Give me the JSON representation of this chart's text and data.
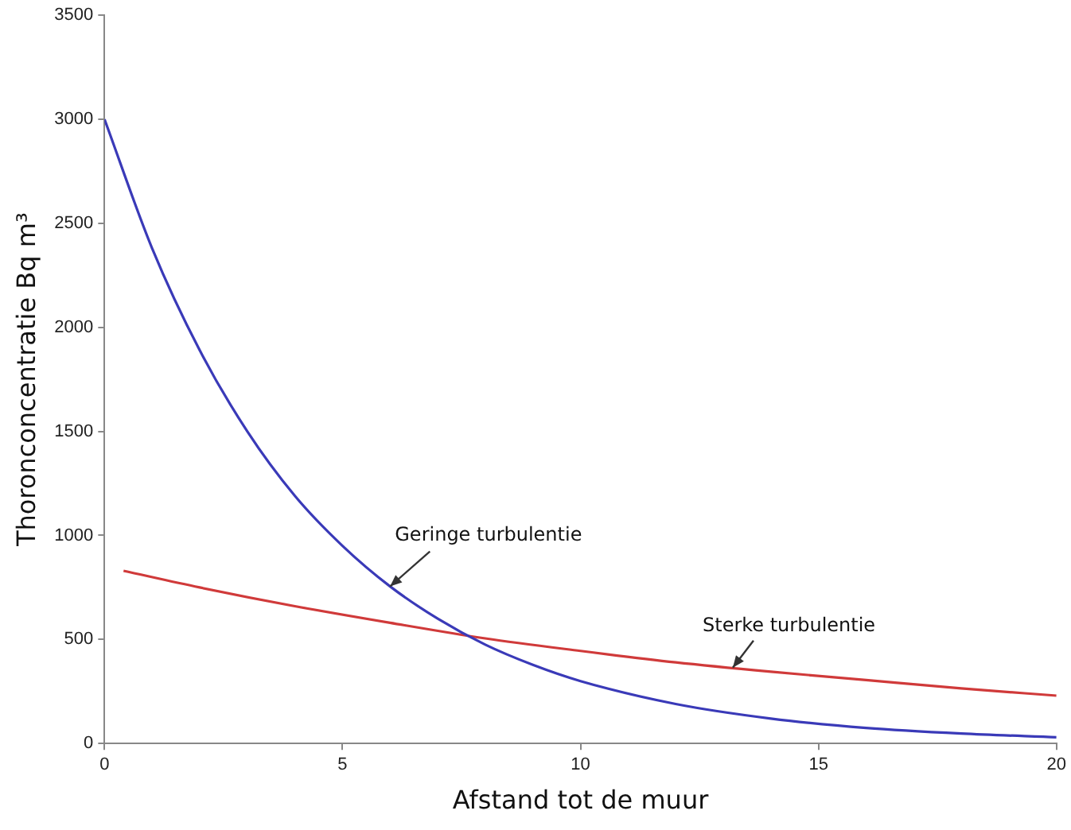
{
  "chart_data": {
    "type": "line",
    "xlabel": "Afstand tot de muur",
    "ylabel": "Thoronconcentratie Bq m³",
    "xlim": [
      0,
      20
    ],
    "xticks": [
      0,
      5,
      10,
      15,
      20
    ],
    "ylim": [
      0,
      3500
    ],
    "yticks": [
      0,
      500,
      1000,
      1500,
      2000,
      2500,
      3000,
      3500
    ],
    "grid": false,
    "legend": false,
    "marker": "none",
    "line_style": "solid",
    "series": [
      {
        "color": "#3a3ab8",
        "x": [
          0,
          1,
          2,
          3,
          4,
          5,
          6,
          7,
          8,
          9,
          10,
          12,
          14,
          16,
          18,
          20
        ],
        "values": [
          3000,
          2380,
          1890,
          1500,
          1190,
          950,
          755,
          600,
          475,
          378,
          300,
          190,
          120,
          75,
          48,
          30
        ]
      },
      {
        "color": "#d03a3a",
        "x": [
          0.4,
          2,
          4,
          6,
          8,
          10,
          12,
          14,
          16,
          18,
          20
        ],
        "values": [
          830,
          750,
          660,
          580,
          505,
          445,
          390,
          345,
          305,
          265,
          230
        ]
      }
    ],
    "annotations": [
      {
        "text": "Geringe turbulentie",
        "x": 6,
        "y": 755
      },
      {
        "text": "Sterke turbulentie",
        "x": 13.2,
        "y": 365
      }
    ]
  }
}
